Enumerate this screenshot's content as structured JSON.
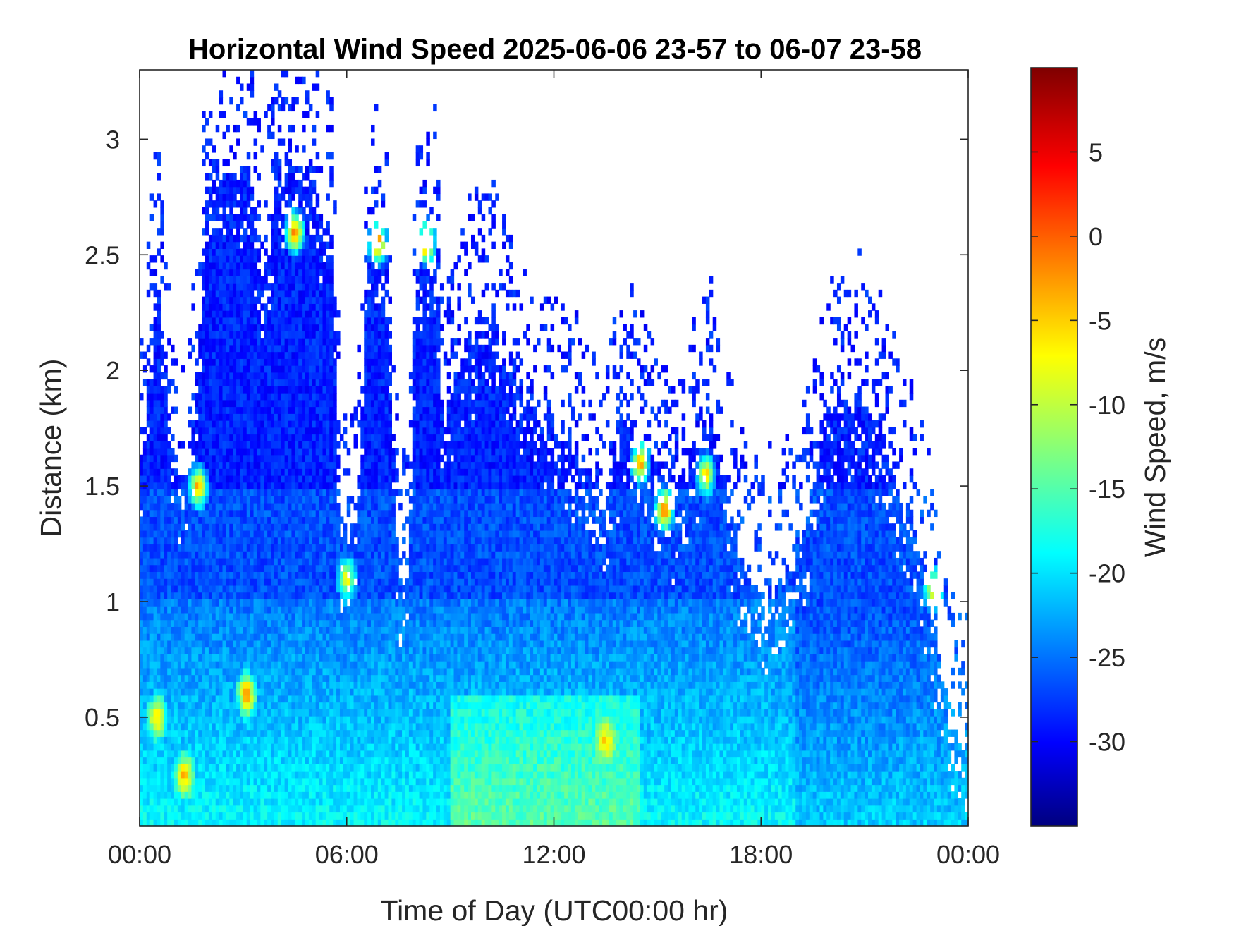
{
  "chart_data": {
    "type": "heatmap",
    "title": "Horizontal Wind Speed 2025-06-06 23-57 to 06-07 23-58",
    "xlabel": "Time of Day (UTC00:00 hr)",
    "ylabel": "Distance (km)",
    "xlim_hours": [
      0,
      24
    ],
    "ylim_km": [
      0.03,
      3.3
    ],
    "x_ticks": [
      {
        "hour": 0,
        "label": "00:00"
      },
      {
        "hour": 6,
        "label": "06:00"
      },
      {
        "hour": 12,
        "label": "12:00"
      },
      {
        "hour": 18,
        "label": "18:00"
      },
      {
        "hour": 24,
        "label": "00:00"
      }
    ],
    "y_ticks": [
      {
        "km": 0.5,
        "label": "0.5"
      },
      {
        "km": 1,
        "label": "1"
      },
      {
        "km": 1.5,
        "label": "1.5"
      },
      {
        "km": 2,
        "label": "2"
      },
      {
        "km": 2.5,
        "label": "2.5"
      },
      {
        "km": 3,
        "label": "3"
      }
    ],
    "colorbar": {
      "label": "Wind Speed, m/s",
      "range": [
        -35,
        10
      ],
      "colormap": "jet",
      "ticks": [
        {
          "value": 5,
          "label": "5"
        },
        {
          "value": 0,
          "label": "0"
        },
        {
          "value": -5,
          "label": "-5"
        },
        {
          "value": -10,
          "label": "-10"
        },
        {
          "value": -15,
          "label": "-15"
        },
        {
          "value": -20,
          "label": "-20"
        },
        {
          "value": -25,
          "label": "-25"
        },
        {
          "value": -30,
          "label": "-30"
        }
      ]
    },
    "grid": false,
    "data_top_profile_km": [
      [
        0.0,
        1.5
      ],
      [
        0.5,
        2.5
      ],
      [
        1.0,
        1.6
      ],
      [
        1.5,
        1.6
      ],
      [
        2.0,
        2.9
      ],
      [
        2.7,
        2.9
      ],
      [
        3.2,
        2.85
      ],
      [
        3.6,
        2.4
      ],
      [
        4.0,
        2.9
      ],
      [
        5.0,
        2.8
      ],
      [
        5.6,
        2.6
      ],
      [
        5.8,
        1.3
      ],
      [
        6.3,
        1.3
      ],
      [
        6.6,
        2.5
      ],
      [
        7.2,
        2.55
      ],
      [
        7.4,
        1.3
      ],
      [
        7.6,
        1.0
      ],
      [
        7.8,
        1.2
      ],
      [
        8.0,
        2.5
      ],
      [
        8.6,
        2.5
      ],
      [
        8.8,
        1.6
      ],
      [
        9.0,
        1.9
      ],
      [
        10.0,
        2.3
      ],
      [
        10.8,
        2.0
      ],
      [
        11.2,
        1.9
      ],
      [
        12.0,
        1.8
      ],
      [
        13.0,
        1.6
      ],
      [
        13.5,
        1.4
      ],
      [
        14.0,
        1.8
      ],
      [
        14.6,
        1.6
      ],
      [
        15.5,
        1.4
      ],
      [
        16.5,
        1.8
      ],
      [
        17.2,
        1.3
      ],
      [
        18.0,
        1.0
      ],
      [
        19.0,
        1.2
      ],
      [
        20.0,
        1.8
      ],
      [
        21.0,
        1.9
      ],
      [
        22.0,
        1.5
      ],
      [
        22.6,
        1.2
      ],
      [
        23.0,
        0.9
      ],
      [
        23.5,
        0.4
      ],
      [
        24.0,
        0.3
      ]
    ],
    "regimes": [
      {
        "hours": [
          0.0,
          24.0
        ],
        "km": [
          0.03,
          1.2
        ],
        "speed_ms": -22
      },
      {
        "hours": [
          9.0,
          14.5
        ],
        "km": [
          0.05,
          0.6
        ],
        "speed_ms": -18
      },
      {
        "hours": [
          0.0,
          9.0
        ],
        "km": [
          1.0,
          3.0
        ],
        "speed_ms": -28
      },
      {
        "hours": [
          9.0,
          20.0
        ],
        "km": [
          1.0,
          2.6
        ],
        "speed_ms": -27
      }
    ],
    "hotspots": [
      {
        "hour": 1.7,
        "km": 1.5,
        "speed_ms": 0
      },
      {
        "hour": 3.1,
        "km": 0.6,
        "speed_ms": 0
      },
      {
        "hour": 4.5,
        "km": 2.6,
        "speed_ms": 2
      },
      {
        "hour": 6.9,
        "km": 2.55,
        "speed_ms": 3
      },
      {
        "hour": 8.3,
        "km": 2.55,
        "speed_ms": 3
      },
      {
        "hour": 0.5,
        "km": 0.5,
        "speed_ms": -3
      },
      {
        "hour": 1.3,
        "km": 0.25,
        "speed_ms": -2
      },
      {
        "hour": 14.5,
        "km": 1.6,
        "speed_ms": 0
      },
      {
        "hour": 15.2,
        "km": 1.4,
        "speed_ms": 2
      },
      {
        "hour": 16.4,
        "km": 1.55,
        "speed_ms": -2
      },
      {
        "hour": 23.0,
        "km": 1.05,
        "speed_ms": -3
      },
      {
        "hour": 6.0,
        "km": 1.1,
        "speed_ms": -4
      },
      {
        "hour": 13.5,
        "km": 0.4,
        "speed_ms": -4
      }
    ]
  }
}
